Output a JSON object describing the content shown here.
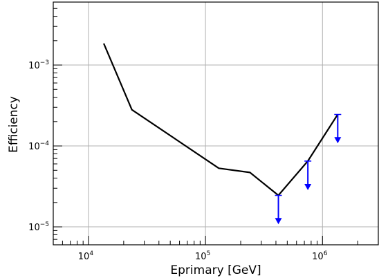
{
  "chart_data": {
    "type": "line",
    "title": "",
    "xlabel": "Eprimary [GeV]",
    "ylabel": "Efficiency",
    "xscale": "log",
    "yscale": "log",
    "xlim": [
      5000,
      3000000
    ],
    "ylim": [
      6e-06,
      0.006
    ],
    "grid": true,
    "legend": "none",
    "xticks": [
      {
        "value": 10000,
        "mantissa": "10",
        "exponent": "4"
      },
      {
        "value": 100000,
        "mantissa": "10",
        "exponent": "5"
      },
      {
        "value": 1000000,
        "mantissa": "10",
        "exponent": "6"
      }
    ],
    "yticks": [
      {
        "value": 1e-05,
        "mantissa": "10",
        "exponent": "−5"
      },
      {
        "value": 0.0001,
        "mantissa": "10",
        "exponent": "−4"
      },
      {
        "value": 0.001,
        "mantissa": "10",
        "exponent": "−3"
      }
    ],
    "series": [
      {
        "color": "#000000",
        "x": [
          13500,
          23500,
          130000,
          240000,
          420000,
          750000,
          1350000
        ],
        "y": [
          0.00185,
          0.00028,
          5.3e-05,
          4.7e-05,
          2.45e-05,
          6.5e-05,
          0.000245
        ]
      }
    ],
    "upper_limits": {
      "color": "#0000ff",
      "points": [
        {
          "x": 420000,
          "y": 2.45e-05,
          "arrow_to": 1.1e-05
        },
        {
          "x": 750000,
          "y": 6.5e-05,
          "arrow_to": 2.9e-05
        },
        {
          "x": 1350000,
          "y": 0.000245,
          "arrow_to": 0.00011
        }
      ]
    }
  }
}
